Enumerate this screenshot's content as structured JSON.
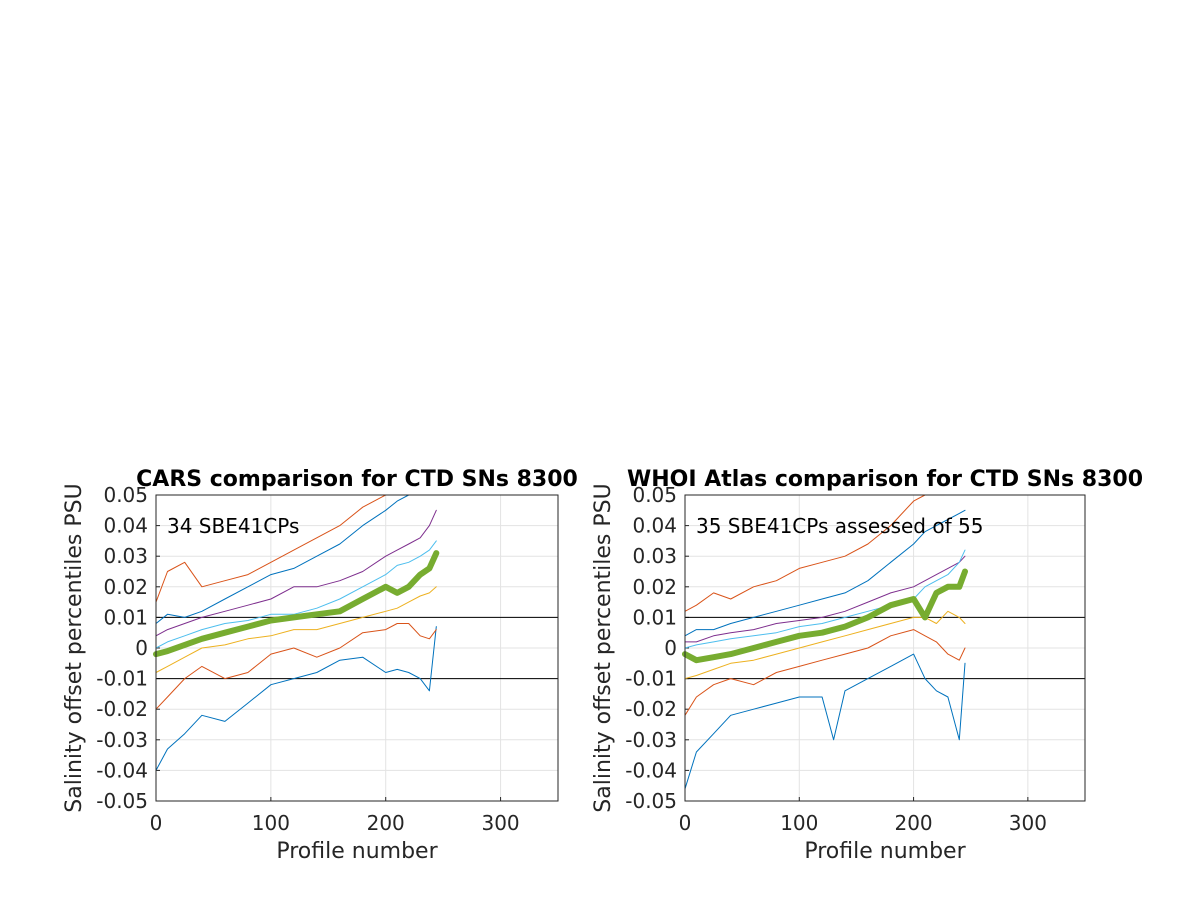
{
  "chart_data": [
    {
      "type": "line",
      "title": "CARS comparison for CTD SNs 8300",
      "xlabel": "Profile number",
      "ylabel": "Salinity offset percentiles PSU",
      "annotation": "34 SBE41CPs",
      "xlim": [
        0,
        350
      ],
      "ylim": [
        -0.05,
        0.05
      ],
      "xticks": [
        "0",
        "100",
        "200",
        "300"
      ],
      "yticks": [
        "-0.05",
        "-0.04",
        "-0.03",
        "-0.02",
        "-0.01",
        "0",
        "0.01",
        "0.02",
        "0.03",
        "0.04",
        "0.05"
      ],
      "grid": true,
      "reference_lines": [
        0.01,
        -0.01
      ],
      "series": [
        {
          "color": "#0072bd",
          "x": [
            0,
            10,
            25,
            40,
            60,
            80,
            100,
            120,
            140,
            160,
            180,
            200,
            210,
            220,
            230,
            238,
            244
          ],
          "values": [
            -0.04,
            -0.033,
            -0.028,
            -0.022,
            -0.024,
            -0.018,
            -0.012,
            -0.01,
            -0.008,
            -0.004,
            -0.003,
            -0.008,
            -0.007,
            -0.008,
            -0.01,
            -0.014,
            0.007
          ]
        },
        {
          "color": "#d95319",
          "x": [
            0,
            10,
            25,
            40,
            60,
            80,
            100,
            120,
            140,
            160,
            180,
            200,
            210,
            220,
            230,
            238,
            244
          ],
          "values": [
            -0.02,
            -0.016,
            -0.01,
            -0.006,
            -0.01,
            -0.008,
            -0.002,
            0.0,
            -0.003,
            0.0,
            0.005,
            0.006,
            0.008,
            0.008,
            0.004,
            0.003,
            0.006
          ]
        },
        {
          "color": "#edb120",
          "x": [
            0,
            10,
            25,
            40,
            60,
            80,
            100,
            120,
            140,
            160,
            180,
            200,
            210,
            220,
            230,
            238,
            244
          ],
          "values": [
            -0.008,
            -0.006,
            -0.003,
            0.0,
            0.001,
            0.003,
            0.004,
            0.006,
            0.006,
            0.008,
            0.01,
            0.012,
            0.013,
            0.015,
            0.017,
            0.018,
            0.02
          ]
        },
        {
          "color": "#7e2f8e",
          "x": [
            0,
            10,
            25,
            40,
            60,
            80,
            100,
            120,
            140,
            160,
            180,
            200,
            210,
            220,
            230,
            238,
            244
          ],
          "values": [
            0.004,
            0.006,
            0.008,
            0.01,
            0.012,
            0.014,
            0.016,
            0.02,
            0.02,
            0.022,
            0.025,
            0.03,
            0.032,
            0.034,
            0.036,
            0.04,
            0.045
          ]
        },
        {
          "color": "#4dbeee",
          "x": [
            0,
            10,
            25,
            40,
            60,
            80,
            100,
            120,
            140,
            160,
            180,
            200,
            210,
            220,
            230,
            238,
            244
          ],
          "values": [
            0.0,
            0.002,
            0.004,
            0.006,
            0.008,
            0.009,
            0.011,
            0.011,
            0.013,
            0.016,
            0.02,
            0.024,
            0.027,
            0.028,
            0.03,
            0.032,
            0.035
          ]
        },
        {
          "color": "#d95319",
          "x": [
            0,
            10,
            25,
            40,
            60,
            80,
            100,
            120,
            140,
            160,
            180,
            200,
            210,
            220,
            230,
            238,
            244
          ],
          "values": [
            0.015,
            0.025,
            0.028,
            0.02,
            0.022,
            0.024,
            0.028,
            0.032,
            0.036,
            0.04,
            0.046,
            0.05,
            0.05,
            0.05,
            0.05,
            0.05,
            0.05
          ]
        },
        {
          "color": "#0072bd",
          "x": [
            0,
            10,
            25,
            40,
            60,
            80,
            100,
            120,
            140,
            160,
            180,
            200,
            210,
            220,
            230,
            238,
            244
          ],
          "values": [
            0.008,
            0.011,
            0.01,
            0.012,
            0.016,
            0.02,
            0.024,
            0.026,
            0.03,
            0.034,
            0.04,
            0.045,
            0.048,
            0.05,
            0.05,
            0.05,
            0.05
          ]
        },
        {
          "name": "median",
          "color": "#77ac30",
          "x": [
            0,
            10,
            25,
            40,
            60,
            80,
            100,
            120,
            140,
            160,
            180,
            200,
            210,
            220,
            230,
            238,
            244
          ],
          "values": [
            -0.002,
            -0.001,
            0.001,
            0.003,
            0.005,
            0.007,
            0.009,
            0.01,
            0.011,
            0.012,
            0.016,
            0.02,
            0.018,
            0.02,
            0.024,
            0.026,
            0.031
          ]
        }
      ]
    },
    {
      "type": "line",
      "title": "WHOI Atlas comparison for CTD SNs 8300",
      "xlabel": "Profile number",
      "ylabel": "Salinity offset percentiles PSU",
      "annotation": "35 SBE41CPs assessed of 55",
      "xlim": [
        0,
        350
      ],
      "ylim": [
        -0.05,
        0.05
      ],
      "xticks": [
        "0",
        "100",
        "200",
        "300"
      ],
      "yticks": [
        "-0.05",
        "-0.04",
        "-0.03",
        "-0.02",
        "-0.01",
        "0",
        "0.01",
        "0.02",
        "0.03",
        "0.04",
        "0.05"
      ],
      "grid": true,
      "reference_lines": [
        0.01,
        -0.01
      ],
      "series": [
        {
          "color": "#0072bd",
          "x": [
            0,
            10,
            25,
            40,
            60,
            80,
            100,
            120,
            130,
            140,
            160,
            180,
            200,
            210,
            220,
            230,
            240,
            245
          ],
          "values": [
            -0.046,
            -0.034,
            -0.028,
            -0.022,
            -0.02,
            -0.018,
            -0.016,
            -0.016,
            -0.03,
            -0.014,
            -0.01,
            -0.006,
            -0.002,
            -0.01,
            -0.014,
            -0.016,
            -0.03,
            -0.005
          ]
        },
        {
          "color": "#d95319",
          "x": [
            0,
            10,
            25,
            40,
            60,
            80,
            100,
            120,
            140,
            160,
            180,
            200,
            210,
            220,
            230,
            240,
            245
          ],
          "values": [
            -0.022,
            -0.016,
            -0.012,
            -0.01,
            -0.012,
            -0.008,
            -0.006,
            -0.004,
            -0.002,
            0.0,
            0.004,
            0.006,
            0.004,
            0.002,
            -0.002,
            -0.004,
            0.0
          ]
        },
        {
          "color": "#edb120",
          "x": [
            0,
            10,
            25,
            40,
            60,
            80,
            100,
            120,
            140,
            160,
            180,
            200,
            210,
            220,
            230,
            240,
            245
          ],
          "values": [
            -0.01,
            -0.009,
            -0.007,
            -0.005,
            -0.004,
            -0.002,
            0.0,
            0.002,
            0.004,
            0.006,
            0.008,
            0.01,
            0.01,
            0.008,
            0.012,
            0.01,
            0.008
          ]
        },
        {
          "color": "#7e2f8e",
          "x": [
            0,
            10,
            25,
            40,
            60,
            80,
            100,
            120,
            140,
            160,
            180,
            200,
            210,
            220,
            230,
            240,
            245
          ],
          "values": [
            0.002,
            0.002,
            0.004,
            0.005,
            0.006,
            0.008,
            0.009,
            0.01,
            0.012,
            0.015,
            0.018,
            0.02,
            0.022,
            0.024,
            0.026,
            0.028,
            0.03
          ]
        },
        {
          "color": "#4dbeee",
          "x": [
            0,
            10,
            25,
            40,
            60,
            80,
            100,
            120,
            140,
            160,
            180,
            200,
            210,
            220,
            230,
            240,
            245
          ],
          "values": [
            0.0,
            0.001,
            0.002,
            0.003,
            0.004,
            0.005,
            0.007,
            0.008,
            0.01,
            0.012,
            0.014,
            0.016,
            0.02,
            0.022,
            0.024,
            0.028,
            0.032
          ]
        },
        {
          "color": "#d95319",
          "x": [
            0,
            10,
            25,
            40,
            60,
            80,
            100,
            120,
            140,
            160,
            180,
            200,
            210,
            220,
            230,
            240,
            245
          ],
          "values": [
            0.012,
            0.014,
            0.018,
            0.016,
            0.02,
            0.022,
            0.026,
            0.028,
            0.03,
            0.034,
            0.04,
            0.048,
            0.05,
            0.05,
            0.05,
            0.05,
            0.05
          ]
        },
        {
          "color": "#0072bd",
          "x": [
            0,
            10,
            25,
            40,
            60,
            80,
            100,
            120,
            140,
            160,
            180,
            200,
            210,
            220,
            230,
            240,
            245
          ],
          "values": [
            0.004,
            0.006,
            0.006,
            0.008,
            0.01,
            0.012,
            0.014,
            0.016,
            0.018,
            0.022,
            0.028,
            0.034,
            0.038,
            0.04,
            0.042,
            0.044,
            0.045
          ]
        },
        {
          "name": "median",
          "color": "#77ac30",
          "x": [
            0,
            10,
            25,
            40,
            60,
            80,
            100,
            120,
            140,
            160,
            180,
            200,
            210,
            220,
            230,
            240,
            245
          ],
          "values": [
            -0.002,
            -0.004,
            -0.003,
            -0.002,
            0.0,
            0.002,
            0.004,
            0.005,
            0.007,
            0.01,
            0.014,
            0.016,
            0.01,
            0.018,
            0.02,
            0.02,
            0.025
          ]
        }
      ]
    }
  ]
}
